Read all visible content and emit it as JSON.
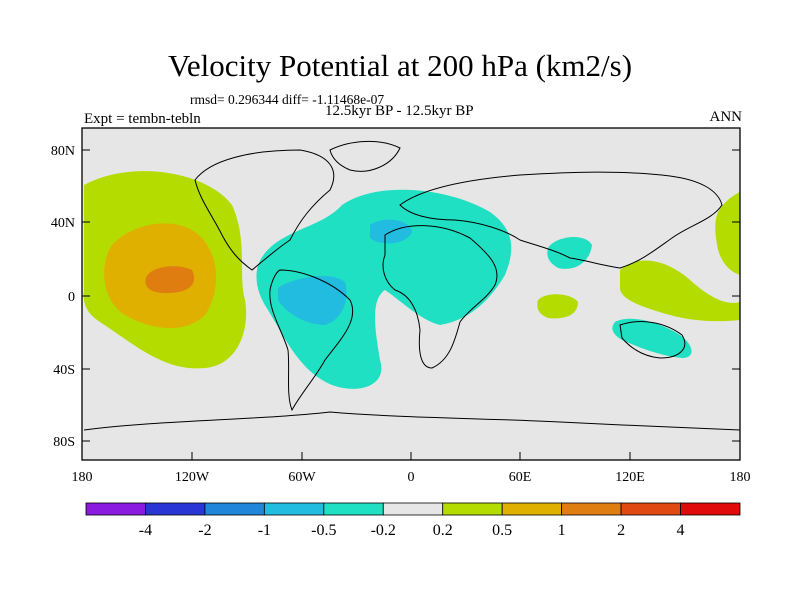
{
  "title": "Velocity Potential at 200 hPa (km2/s)",
  "stats": "rmsd= 0.296344 diff= -1.11468e-07",
  "experiment": "Expt = tembn-tebln",
  "period": "12.5kyr BP - 12.5kyr BP",
  "season": "ANN",
  "axes": {
    "lat_labels": [
      "80N",
      "40N",
      "0",
      "40S",
      "80S"
    ],
    "lon_labels": [
      "180",
      "120W",
      "60W",
      "0",
      "60E",
      "120E",
      "180"
    ]
  },
  "colorbar": {
    "labels": [
      "-4",
      "-2",
      "-1",
      "-0.5",
      "-0.2",
      "0.2",
      "0.5",
      "1",
      "2",
      "4"
    ],
    "colors": [
      "#8a1ae0",
      "#2a35d6",
      "#1f86da",
      "#21bce0",
      "#1fe0c2",
      "#e6e6e6",
      "#b4dc00",
      "#e0b000",
      "#e07d10",
      "#e04a10",
      "#e00a0a"
    ]
  },
  "colors": {
    "ocean": "#e6e6e6",
    "negative_weak": "#1fe0c2",
    "negative_mid": "#21bce0",
    "positive_weak": "#b4dc00",
    "positive_mid": "#e0b000",
    "positive_strong": "#e07d10"
  }
}
